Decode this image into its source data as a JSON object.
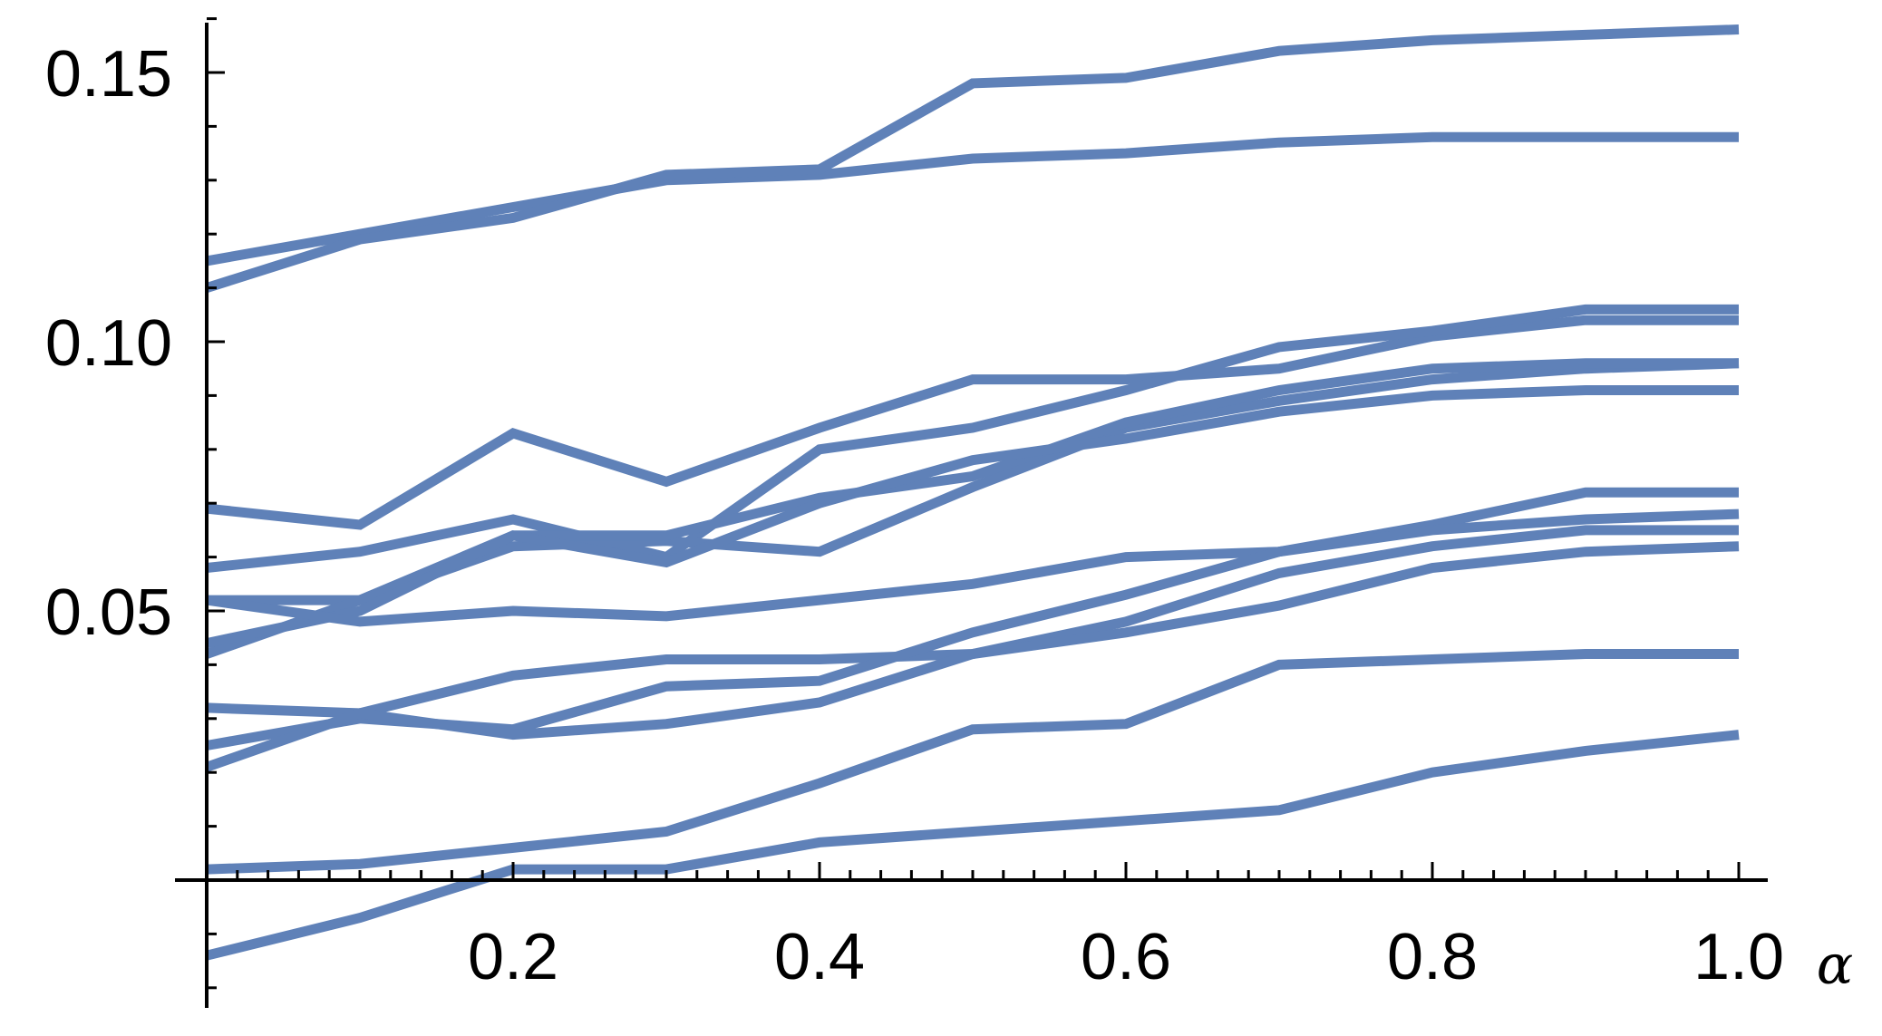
{
  "chart_data": {
    "type": "line",
    "title": "",
    "xlabel": "α",
    "ylabel": "",
    "xlim": [
      0,
      1.0
    ],
    "ylim": [
      -0.02,
      0.16
    ],
    "grid": false,
    "legend": "none",
    "line_color": "#5F81B8",
    "x": [
      0,
      0.1,
      0.2,
      0.3,
      0.4,
      0.5,
      0.6,
      0.7,
      0.8,
      0.9,
      1.0
    ],
    "x_ticks": [
      0.2,
      0.4,
      0.6,
      0.8,
      1.0
    ],
    "x_tick_labels": [
      "0.2",
      "0.4",
      "0.6",
      "0.8",
      "1.0"
    ],
    "y_ticks": [
      0.05,
      0.1,
      0.15
    ],
    "y_tick_labels": [
      "0.05",
      "0.10",
      "0.15"
    ],
    "series": [
      {
        "values": [
          0.115,
          0.12,
          0.125,
          0.13,
          0.131,
          0.134,
          0.135,
          0.137,
          0.138,
          0.138,
          0.138
        ]
      },
      {
        "values": [
          0.11,
          0.119,
          0.123,
          0.131,
          0.132,
          0.148,
          0.149,
          0.154,
          0.156,
          0.157,
          0.158
        ]
      },
      {
        "values": [
          0.069,
          0.066,
          0.083,
          0.074,
          0.084,
          0.093,
          0.093,
          0.095,
          0.101,
          0.104,
          0.104
        ]
      },
      {
        "values": [
          0.058,
          0.061,
          0.067,
          0.06,
          0.08,
          0.084,
          0.091,
          0.099,
          0.102,
          0.106,
          0.106
        ]
      },
      {
        "values": [
          0.052,
          0.052,
          0.062,
          0.063,
          0.061,
          0.073,
          0.084,
          0.089,
          0.093,
          0.095,
          0.096
        ]
      },
      {
        "values": [
          0.042,
          0.052,
          0.064,
          0.064,
          0.071,
          0.075,
          0.085,
          0.091,
          0.095,
          0.096,
          0.096
        ]
      },
      {
        "values": [
          0.044,
          0.05,
          0.064,
          0.059,
          0.07,
          0.078,
          0.082,
          0.087,
          0.09,
          0.091,
          0.091
        ]
      },
      {
        "values": [
          0.052,
          0.048,
          0.05,
          0.049,
          0.052,
          0.055,
          0.06,
          0.061,
          0.066,
          0.072,
          0.072
        ]
      },
      {
        "values": [
          0.032,
          0.031,
          0.038,
          0.041,
          0.041,
          0.042,
          0.048,
          0.057,
          0.062,
          0.065,
          0.065
        ]
      },
      {
        "values": [
          0.025,
          0.03,
          0.028,
          0.036,
          0.037,
          0.046,
          0.053,
          0.061,
          0.065,
          0.067,
          0.068
        ]
      },
      {
        "values": [
          0.021,
          0.031,
          0.027,
          0.029,
          0.033,
          0.042,
          0.046,
          0.051,
          0.058,
          0.061,
          0.062
        ]
      },
      {
        "values": [
          0.002,
          0.003,
          0.006,
          0.009,
          0.018,
          0.028,
          0.029,
          0.04,
          0.041,
          0.042,
          0.042
        ]
      },
      {
        "values": [
          -0.014,
          -0.007,
          0.002,
          0.002,
          0.007,
          0.009,
          0.011,
          0.013,
          0.02,
          0.024,
          0.027
        ]
      }
    ]
  }
}
